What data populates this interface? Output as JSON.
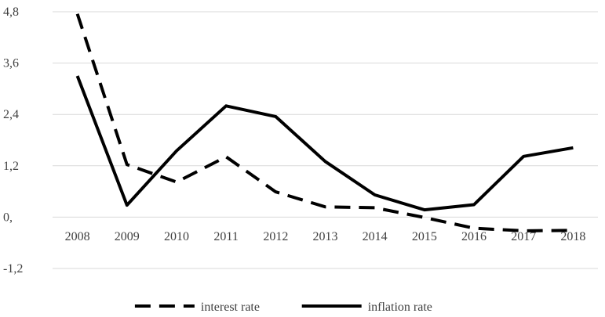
{
  "chart_data": {
    "type": "line",
    "categories": [
      "2008",
      "2009",
      "2010",
      "2011",
      "2012",
      "2013",
      "2014",
      "2015",
      "2016",
      "2017",
      "2018"
    ],
    "series": [
      {
        "name": "interest rate",
        "style": "dashed",
        "color": "#000000",
        "values": [
          4.75,
          1.23,
          0.82,
          1.41,
          0.59,
          0.24,
          0.22,
          -0.01,
          -0.26,
          -0.32,
          -0.31
        ]
      },
      {
        "name": "inflation rate",
        "style": "solid",
        "color": "#000000",
        "values": [
          3.3,
          0.28,
          1.55,
          2.6,
          2.35,
          1.3,
          0.52,
          0.17,
          0.29,
          1.42,
          1.62
        ]
      }
    ],
    "y_ticks": [
      {
        "value": 4.8,
        "label": "4,8"
      },
      {
        "value": 3.6,
        "label": "3,6"
      },
      {
        "value": 2.4,
        "label": "2,4"
      },
      {
        "value": 1.2,
        "label": "1,2"
      },
      {
        "value": 0,
        "label": "0,"
      },
      {
        "value": -1.2,
        "label": "-1,2"
      }
    ],
    "ylim": [
      -1.2,
      4.8
    ],
    "grid": true,
    "legend_position": "bottom",
    "title": "",
    "xlabel": "",
    "ylabel": ""
  }
}
